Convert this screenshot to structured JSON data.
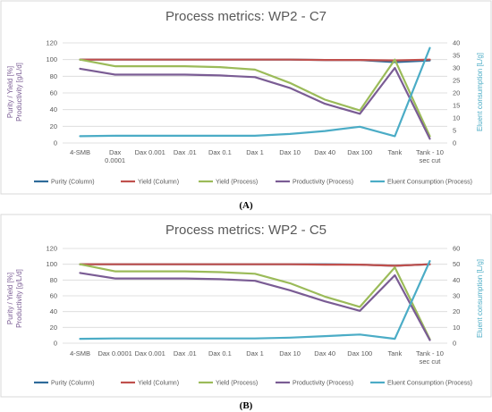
{
  "colors": {
    "purity_column": "#2e6b9a",
    "yield_column": "#c0504d",
    "yield_process": "#9bbb59",
    "productivity_process": "#7a5c94",
    "eluent_consumption": "#4bacc6",
    "left_axis_label_purity": "#7a5c94",
    "right_axis_label": "#4bacc6"
  },
  "panels": [
    {
      "panel_label": "(A)",
      "legend": [
        "Purity (Column)",
        "Yield (Column)",
        "Yield (Process)",
        "Productivity (Process)",
        "Eluent Consumption (Process)"
      ]
    },
    {
      "panel_label": "(B)",
      "legend": [
        "Purity (Column)",
        "Yield (Column)",
        "Yield (Process)",
        "Productivity (Process)",
        "Eluent Consumption (Process)"
      ]
    }
  ],
  "chart_data": [
    {
      "type": "line",
      "title": "Process metrics: WP2 - C7",
      "categories": [
        "4-SMB",
        "Dax\n0.0001",
        "Dax 0.001",
        "Dax .01",
        "Dax 0.1",
        "Dax 1",
        "Dax 10",
        "Dax 40",
        "Dax 100",
        "Tank",
        "Tank - 10\nsec cut"
      ],
      "ylabel_left_line1": "Purity / Yield [%]",
      "ylabel_left_line2": "Productivity [g/L/d]",
      "ylabel_right": "Eluent consumption [L/g]",
      "ylim_left": [
        0,
        120
      ],
      "ylim_right": [
        0,
        40
      ],
      "yticks_left": [
        0,
        20,
        40,
        60,
        80,
        100,
        120
      ],
      "yticks_right": [
        0,
        5,
        10,
        15,
        20,
        25,
        30,
        35,
        40
      ],
      "grid": true,
      "legend_position": "bottom",
      "series": [
        {
          "name": "Purity (Column)",
          "axis": "left",
          "values": [
            100,
            100,
            100,
            100,
            100,
            100,
            100,
            99.5,
            99.5,
            97,
            99
          ]
        },
        {
          "name": "Yield (Column)",
          "axis": "left",
          "values": [
            100,
            100,
            100,
            100,
            100,
            100,
            100,
            99.5,
            99.5,
            99,
            100
          ]
        },
        {
          "name": "Yield (Process)",
          "axis": "left",
          "values": [
            100,
            92,
            92,
            92,
            91,
            88,
            72,
            52,
            39,
            100,
            8
          ]
        },
        {
          "name": "Productivity (Process)",
          "axis": "left",
          "values": [
            89,
            82,
            82,
            82,
            81,
            79,
            66,
            47,
            35,
            90,
            5
          ]
        },
        {
          "name": "Eluent Consumption (Process)",
          "axis": "right",
          "values": [
            2.7,
            2.9,
            2.9,
            2.9,
            2.9,
            2.9,
            3.6,
            4.8,
            6.5,
            2.7,
            38
          ]
        }
      ]
    },
    {
      "type": "line",
      "title": "Process metrics: WP2 - C5",
      "categories": [
        "4-SMB",
        "Dax 0.0001",
        "Dax 0.001",
        "Dax .01",
        "Dax 0.1",
        "Dax 1",
        "Dax 10",
        "Dax 40",
        "Dax 100",
        "Tank",
        "Tank - 10\nsec cut"
      ],
      "ylabel_left_line1": "Purity / Yield [%]",
      "ylabel_left_line2": "Productivity [g/L/d]",
      "ylabel_right": "Eluent consumption [L/g]",
      "ylim_left": [
        0,
        120
      ],
      "ylim_right": [
        0,
        60
      ],
      "yticks_left": [
        0,
        20,
        40,
        60,
        80,
        100,
        120
      ],
      "yticks_right": [
        0,
        10,
        20,
        30,
        40,
        50,
        60
      ],
      "grid": true,
      "legend_position": "bottom",
      "series": [
        {
          "name": "Purity (Column)",
          "axis": "left",
          "values": [
            100,
            100,
            100,
            100,
            100,
            100,
            100,
            100,
            99.5,
            98,
            100
          ]
        },
        {
          "name": "Yield (Column)",
          "axis": "left",
          "values": [
            100,
            100,
            100,
            100,
            100,
            100,
            100,
            99.5,
            99.5,
            98,
            100
          ]
        },
        {
          "name": "Yield (Process)",
          "axis": "left",
          "values": [
            100,
            91,
            91,
            91,
            90,
            88,
            76,
            59,
            46,
            96,
            5
          ]
        },
        {
          "name": "Productivity (Process)",
          "axis": "left",
          "values": [
            89,
            82,
            82,
            82,
            81,
            79,
            67,
            53,
            41,
            86,
            4
          ]
        },
        {
          "name": "Eluent Consumption (Process)",
          "axis": "right",
          "values": [
            2.8,
            3,
            3,
            3,
            3,
            3,
            3.5,
            4.5,
            5.5,
            2.8,
            52
          ]
        }
      ]
    }
  ]
}
